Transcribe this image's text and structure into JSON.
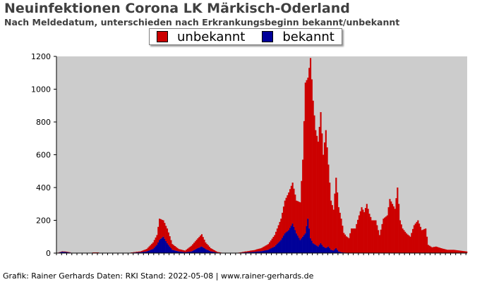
{
  "title": "Neuinfektionen Corona LK Märkisch-Oderland",
  "subtitle": "Nach Meldedatum, unterschieden nach Erkrankungsbeginn bekannt/unbekannt",
  "credit": "Grafik: Rainer Gerhards Daten: RKI Stand: 2022-05-08 | www.rainer-gerhards.de",
  "colors": {
    "plot_bg": "#cccccc",
    "unbekannt": "#cc0000",
    "bekannt": "#000099"
  },
  "chart_data": {
    "type": "bar",
    "stacked": true,
    "ylim": [
      0,
      1200
    ],
    "yticks": [
      0,
      200,
      400,
      600,
      800,
      1000,
      1200
    ],
    "grid": false,
    "legend_position": "top-center",
    "series": [
      {
        "name": "unbekannt",
        "color": "#cc0000",
        "keyframes": [
          [
            0,
            0
          ],
          [
            4,
            3
          ],
          [
            8,
            3
          ],
          [
            12,
            0
          ],
          [
            20,
            0
          ],
          [
            30,
            2
          ],
          [
            40,
            0
          ],
          [
            55,
            0
          ],
          [
            60,
            3
          ],
          [
            65,
            5
          ],
          [
            70,
            15
          ],
          [
            75,
            40
          ],
          [
            78,
            60
          ],
          [
            80,
            130
          ],
          [
            83,
            100
          ],
          [
            86,
            90
          ],
          [
            90,
            35
          ],
          [
            95,
            15
          ],
          [
            100,
            10
          ],
          [
            105,
            35
          ],
          [
            110,
            60
          ],
          [
            113,
            75
          ],
          [
            116,
            40
          ],
          [
            120,
            20
          ],
          [
            125,
            5
          ],
          [
            130,
            0
          ],
          [
            140,
            0
          ],
          [
            145,
            4
          ],
          [
            150,
            8
          ],
          [
            155,
            12
          ],
          [
            160,
            20
          ],
          [
            165,
            35
          ],
          [
            170,
            70
          ],
          [
            175,
            130
          ],
          [
            178,
            200
          ],
          [
            181,
            230
          ],
          [
            184,
            250
          ],
          [
            187,
            200
          ],
          [
            190,
            230
          ],
          [
            192,
            470
          ],
          [
            194,
            920
          ],
          [
            196,
            860
          ],
          [
            198,
            1100
          ],
          [
            200,
            870
          ],
          [
            202,
            700
          ],
          [
            204,
            640
          ],
          [
            206,
            800
          ],
          [
            208,
            560
          ],
          [
            210,
            720
          ],
          [
            212,
            500
          ],
          [
            214,
            300
          ],
          [
            216,
            250
          ],
          [
            218,
            430
          ],
          [
            220,
            270
          ],
          [
            222,
            205
          ],
          [
            224,
            120
          ],
          [
            226,
            100
          ],
          [
            228,
            90
          ],
          [
            230,
            150
          ],
          [
            233,
            150
          ],
          [
            236,
            230
          ],
          [
            238,
            280
          ],
          [
            240,
            250
          ],
          [
            242,
            300
          ],
          [
            244,
            240
          ],
          [
            246,
            200
          ],
          [
            249,
            200
          ],
          [
            252,
            110
          ],
          [
            255,
            210
          ],
          [
            258,
            230
          ],
          [
            260,
            330
          ],
          [
            262,
            300
          ],
          [
            264,
            270
          ],
          [
            266,
            400
          ],
          [
            268,
            200
          ],
          [
            270,
            150
          ],
          [
            273,
            120
          ],
          [
            276,
            100
          ],
          [
            279,
            170
          ],
          [
            282,
            200
          ],
          [
            285,
            140
          ],
          [
            288,
            150
          ],
          [
            290,
            50
          ],
          [
            293,
            35
          ],
          [
            296,
            40
          ],
          [
            300,
            30
          ],
          [
            305,
            20
          ],
          [
            310,
            20
          ],
          [
            315,
            15
          ],
          [
            320,
            10
          ]
        ]
      },
      {
        "name": "bekannt",
        "color": "#000099",
        "keyframes": [
          [
            0,
            0
          ],
          [
            4,
            8
          ],
          [
            8,
            5
          ],
          [
            12,
            0
          ],
          [
            20,
            0
          ],
          [
            30,
            2
          ],
          [
            40,
            0
          ],
          [
            55,
            0
          ],
          [
            60,
            3
          ],
          [
            65,
            5
          ],
          [
            70,
            10
          ],
          [
            75,
            25
          ],
          [
            78,
            50
          ],
          [
            80,
            80
          ],
          [
            83,
            100
          ],
          [
            86,
            60
          ],
          [
            90,
            20
          ],
          [
            95,
            10
          ],
          [
            100,
            5
          ],
          [
            105,
            10
          ],
          [
            110,
            30
          ],
          [
            113,
            40
          ],
          [
            116,
            25
          ],
          [
            120,
            10
          ],
          [
            125,
            3
          ],
          [
            130,
            0
          ],
          [
            140,
            0
          ],
          [
            145,
            3
          ],
          [
            150,
            5
          ],
          [
            155,
            8
          ],
          [
            160,
            12
          ],
          [
            165,
            20
          ],
          [
            170,
            40
          ],
          [
            175,
            80
          ],
          [
            178,
            120
          ],
          [
            181,
            140
          ],
          [
            184,
            180
          ],
          [
            187,
            120
          ],
          [
            190,
            80
          ],
          [
            192,
            100
          ],
          [
            194,
            120
          ],
          [
            196,
            210
          ],
          [
            198,
            90
          ],
          [
            200,
            60
          ],
          [
            202,
            50
          ],
          [
            204,
            40
          ],
          [
            206,
            60
          ],
          [
            208,
            40
          ],
          [
            210,
            30
          ],
          [
            212,
            40
          ],
          [
            214,
            20
          ],
          [
            216,
            15
          ],
          [
            218,
            30
          ],
          [
            220,
            10
          ],
          [
            222,
            5
          ],
          [
            224,
            3
          ],
          [
            230,
            0
          ],
          [
            320,
            0
          ]
        ]
      }
    ]
  }
}
